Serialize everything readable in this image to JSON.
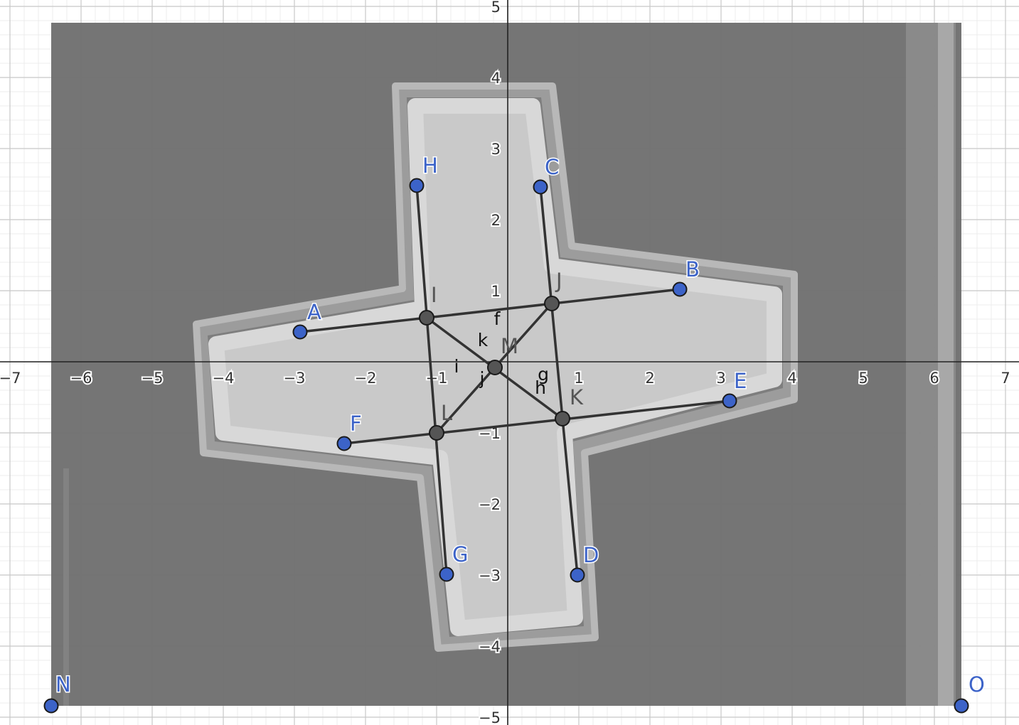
{
  "axes": {
    "x_range": [
      -7,
      7
    ],
    "y_range": [
      -5,
      5
    ],
    "x_ticks": [
      "−7",
      "−6",
      "−5",
      "−4",
      "−3",
      "−2",
      "−1",
      "1",
      "2",
      "3",
      "4",
      "5",
      "6",
      "7"
    ],
    "y_ticks": [
      "5",
      "4",
      "3",
      "2",
      "1",
      "−1",
      "−2",
      "−3",
      "−4",
      "−5"
    ],
    "grid": true
  },
  "background_image": {
    "description_icon": "specimen-photo",
    "corners": [
      "N",
      "O"
    ]
  },
  "colors": {
    "free_point": "#3c63c8",
    "dependent_point": "#555555",
    "segment": "#333333",
    "photo_bg": "#6f6f6f",
    "cross_fill": "#c9c9c9"
  },
  "points": [
    {
      "name": "A",
      "label": "A",
      "x": -2.92,
      "y": 0.42,
      "type": "free"
    },
    {
      "name": "B",
      "label": "B",
      "x": 2.42,
      "y": 1.02,
      "type": "free"
    },
    {
      "name": "C",
      "label": "C",
      "x": 0.46,
      "y": 2.46,
      "type": "free"
    },
    {
      "name": "D",
      "label": "D",
      "x": 0.98,
      "y": -3.0,
      "type": "free"
    },
    {
      "name": "E",
      "label": "E",
      "x": 3.12,
      "y": -0.55,
      "type": "free"
    },
    {
      "name": "F",
      "label": "F",
      "x": -2.3,
      "y": -1.15,
      "type": "free"
    },
    {
      "name": "G",
      "label": "G",
      "x": -0.86,
      "y": -2.99,
      "type": "free"
    },
    {
      "name": "H",
      "label": "H",
      "x": -1.28,
      "y": 2.48,
      "type": "free"
    },
    {
      "name": "I",
      "label": "I",
      "x": -1.14,
      "y": 0.62,
      "type": "dependent"
    },
    {
      "name": "J",
      "label": "J",
      "x": 0.62,
      "y": 0.82,
      "type": "dependent"
    },
    {
      "name": "K",
      "label": "K",
      "x": 0.77,
      "y": -0.8,
      "type": "dependent"
    },
    {
      "name": "L",
      "label": "L",
      "x": -1.0,
      "y": -1.0,
      "type": "dependent"
    },
    {
      "name": "M",
      "label": "M",
      "x": -0.18,
      "y": -0.08,
      "type": "dependent"
    },
    {
      "name": "N",
      "label": "N",
      "x": -6.42,
      "y": -4.84,
      "type": "free"
    },
    {
      "name": "O",
      "label": "O",
      "x": 6.38,
      "y": -4.84,
      "type": "free"
    }
  ],
  "segments": [
    {
      "from": "A",
      "to": "B"
    },
    {
      "from": "F",
      "to": "E"
    },
    {
      "from": "H",
      "to": "G"
    },
    {
      "from": "C",
      "to": "D"
    },
    {
      "from": "I",
      "to": "K"
    },
    {
      "from": "J",
      "to": "L"
    }
  ],
  "segment_labels": [
    {
      "text": "f",
      "x": -0.15,
      "y": 0.52
    },
    {
      "text": "k",
      "x": -0.35,
      "y": 0.22
    },
    {
      "text": "g",
      "x": 0.5,
      "y": -0.26
    },
    {
      "text": "h",
      "x": 0.46,
      "y": -0.45
    },
    {
      "text": "i",
      "x": -0.72,
      "y": -0.15
    },
    {
      "text": "j",
      "x": -0.36,
      "y": -0.32
    }
  ]
}
